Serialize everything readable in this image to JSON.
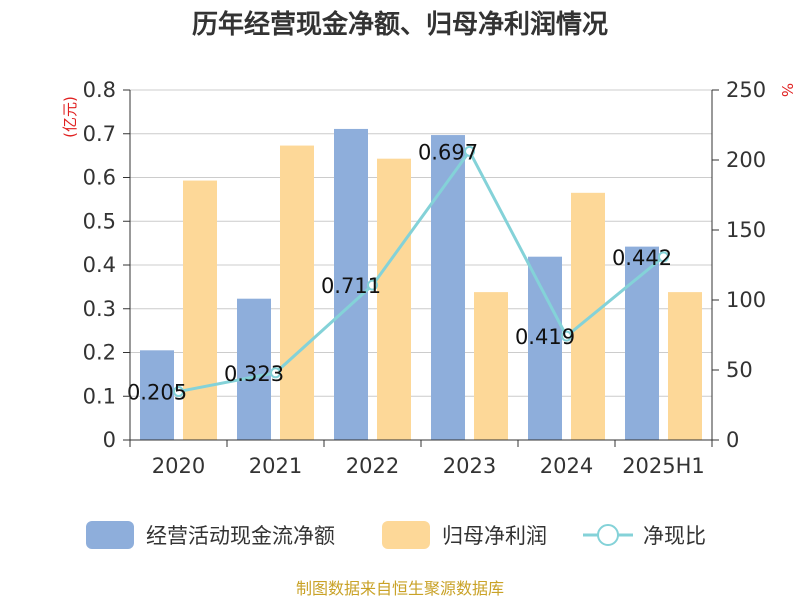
{
  "title": "历年经营现金净额、归母净利润情况",
  "source": "制图数据来自恒生聚源数据库",
  "chart_data": {
    "type": "bar",
    "categories": [
      "2020",
      "2021",
      "2022",
      "2023",
      "2024",
      "2025H1"
    ],
    "series": [
      {
        "name": "经营活动现金流净额",
        "type": "bar",
        "axis": "left",
        "color": "#8eaedb",
        "values": [
          0.205,
          0.323,
          0.711,
          0.697,
          0.419,
          0.442
        ]
      },
      {
        "name": "归母净利润",
        "type": "bar",
        "axis": "left",
        "color": "#fdd898",
        "values": [
          0.593,
          0.673,
          0.643,
          0.338,
          0.565,
          0.338
        ]
      },
      {
        "name": "净现比",
        "type": "line",
        "axis": "right",
        "color": "#84d2d8",
        "values": [
          34.6,
          48.0,
          110.6,
          206.2,
          74.2,
          130.8
        ]
      }
    ],
    "data_labels": [
      "0.205",
      "0.323",
      "0.711",
      "0.697",
      "0.419",
      "0.442"
    ],
    "y_left": {
      "unit": "(亿元)",
      "ylim": [
        0,
        0.8
      ],
      "ticks": [
        "0",
        "0.1",
        "0.2",
        "0.3",
        "0.4",
        "0.5",
        "0.6",
        "0.7",
        "0.8"
      ]
    },
    "y_right": {
      "unit": "%",
      "ylim": [
        0,
        250
      ],
      "ticks": [
        "0",
        "50",
        "100",
        "150",
        "200",
        "250"
      ]
    },
    "grid": true,
    "legend_position": "bottom"
  }
}
